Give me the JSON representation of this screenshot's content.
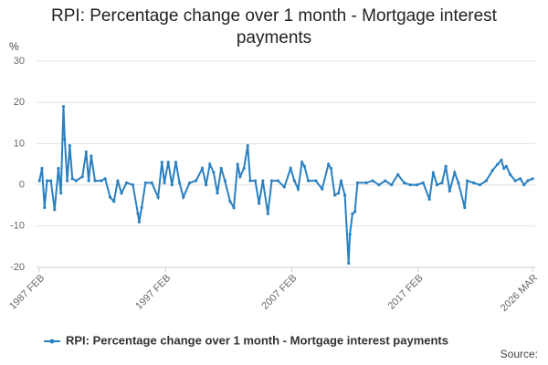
{
  "chart_data": {
    "type": "line",
    "title": "RPI: Percentage change over 1 month - Mortgage interest payments",
    "y_label": "%",
    "source": "Source:",
    "ylim": [
      -20,
      30
    ],
    "yticks": [
      -20,
      -10,
      0,
      10,
      20,
      30
    ],
    "xlim": [
      1987.083,
      2026.167
    ],
    "xticks": [
      {
        "value": 1987.083,
        "label": "1987 FEB"
      },
      {
        "value": 1997.083,
        "label": "1997 FEB"
      },
      {
        "value": 2007.083,
        "label": "2007 FEB"
      },
      {
        "value": 2017.083,
        "label": "2017 FEB"
      },
      {
        "value": 2026.167,
        "label": "2026 MAR"
      }
    ],
    "grid": true,
    "legend": "bottom",
    "series": [
      {
        "name": "RPI: Percentage change over 1 month - Mortgage interest payments",
        "color": "#2a80c0",
        "x": [
          1987.1,
          1987.3,
          1987.5,
          1987.7,
          1988.0,
          1988.3,
          1988.6,
          1988.8,
          1989.0,
          1989.1,
          1989.3,
          1989.5,
          1989.7,
          1990.0,
          1990.5,
          1990.8,
          1991.0,
          1991.2,
          1991.5,
          1992.0,
          1992.3,
          1992.7,
          1993.0,
          1993.3,
          1993.6,
          1994.0,
          1994.5,
          1994.9,
          1995.0,
          1995.2,
          1995.5,
          1996.0,
          1996.5,
          1996.8,
          1997.0,
          1997.3,
          1997.6,
          1997.9,
          1998.2,
          1998.5,
          1999.0,
          1999.5,
          2000.0,
          2000.3,
          2000.6,
          2000.9,
          2001.2,
          2001.5,
          2001.8,
          2002.2,
          2002.5,
          2002.8,
          2003.0,
          2003.3,
          2003.6,
          2003.8,
          2004.2,
          2004.5,
          2004.8,
          2005.2,
          2005.5,
          2006.0,
          2006.5,
          2007.0,
          2007.3,
          2007.6,
          2007.9,
          2008.1,
          2008.4,
          2009.0,
          2009.5,
          2010.0,
          2010.2,
          2010.5,
          2010.8,
          2011.0,
          2011.3,
          2011.6,
          2011.7,
          2011.9,
          2012.1,
          2012.3,
          2013.0,
          2013.5,
          2014.0,
          2014.5,
          2015.0,
          2015.5,
          2016.0,
          2016.5,
          2017.0,
          2017.5,
          2018.0,
          2018.3,
          2018.6,
          2019.0,
          2019.3,
          2019.6,
          2020.0,
          2020.3,
          2020.8,
          2021.0,
          2021.5,
          2022.0,
          2022.5,
          2023.0,
          2023.4,
          2023.7,
          2023.9,
          2024.1,
          2024.4,
          2024.8,
          2025.2,
          2025.5,
          2025.8,
          2026.17
        ],
        "values": [
          1,
          4,
          -5.5,
          1,
          1,
          -6,
          4,
          -2,
          19,
          11,
          1,
          9.5,
          1.5,
          1,
          2,
          8,
          1,
          7,
          1,
          1,
          1.5,
          -3,
          -4,
          1,
          -2,
          0.5,
          0,
          -7,
          -9,
          -5.5,
          0.5,
          0.5,
          -3,
          5.5,
          0.5,
          5.5,
          0,
          5.5,
          0.5,
          -3,
          0.5,
          1,
          4,
          0,
          5,
          3,
          -2,
          4,
          1,
          -4,
          -5.5,
          5,
          2,
          4,
          9.5,
          1,
          1,
          -4.5,
          1,
          -7,
          1,
          1,
          -0.5,
          4,
          1,
          -1,
          5.5,
          4.5,
          1,
          1,
          -1,
          5,
          4,
          -2.5,
          -2,
          1,
          -2.5,
          -19,
          -12,
          -7,
          -6.5,
          0.5,
          0.5,
          1,
          0,
          1,
          0,
          2.5,
          0.5,
          0,
          0,
          0.5,
          -3.5,
          3,
          0,
          0.5,
          4.5,
          -1.5,
          3,
          0.5,
          -5.5,
          1,
          0.5,
          0,
          1,
          3.5,
          5,
          6,
          4,
          4.5,
          2.5,
          1,
          1.5,
          0,
          1,
          1.5
        ]
      }
    ]
  }
}
